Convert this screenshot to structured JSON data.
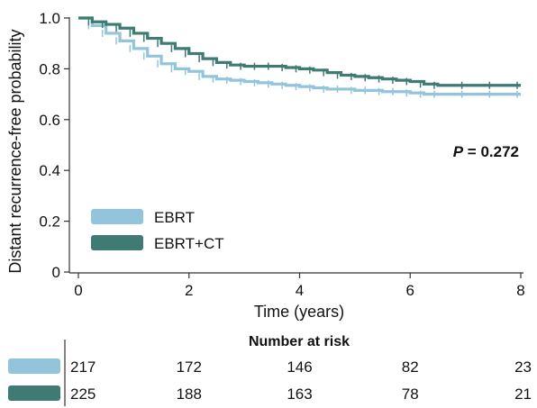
{
  "chart_data": {
    "type": "line",
    "title": "",
    "xlabel": "Time (years)",
    "ylabel": "Distant recurrence-free probability",
    "xlim": [
      0,
      8
    ],
    "ylim": [
      0,
      1.0
    ],
    "x_ticks": [
      "0",
      "2",
      "4",
      "6",
      "8"
    ],
    "y_ticks": [
      "0",
      "0.2",
      "0.4",
      "0.6",
      "0.8",
      "1.0"
    ],
    "grid": false,
    "legend_position": "bottom-left",
    "p_value": {
      "prefix": "P",
      "text": " = 0.272"
    },
    "series": [
      {
        "name": "EBRT",
        "color": "#92c5dc",
        "x": [
          0,
          0.25,
          0.5,
          0.75,
          1.0,
          1.25,
          1.5,
          1.75,
          2.0,
          2.25,
          2.5,
          2.75,
          3.0,
          3.25,
          3.5,
          3.75,
          4.0,
          4.25,
          4.5,
          4.75,
          5.0,
          5.25,
          5.5,
          5.75,
          6.0,
          6.25,
          6.5,
          7.0,
          7.5,
          8.0
        ],
        "y": [
          1.0,
          0.97,
          0.94,
          0.91,
          0.88,
          0.85,
          0.82,
          0.8,
          0.79,
          0.77,
          0.76,
          0.755,
          0.75,
          0.745,
          0.74,
          0.735,
          0.73,
          0.725,
          0.72,
          0.72,
          0.715,
          0.715,
          0.71,
          0.71,
          0.705,
          0.7,
          0.7,
          0.7,
          0.7,
          0.7
        ]
      },
      {
        "name": "EBRT+CT",
        "color": "#3f7a73",
        "x": [
          0,
          0.25,
          0.5,
          0.75,
          1.0,
          1.25,
          1.5,
          1.75,
          2.0,
          2.25,
          2.5,
          2.75,
          3.0,
          3.25,
          3.5,
          3.75,
          4.0,
          4.25,
          4.5,
          4.75,
          5.0,
          5.25,
          5.5,
          5.75,
          6.0,
          6.25,
          6.5,
          7.0,
          7.5,
          8.0
        ],
        "y": [
          1.0,
          0.985,
          0.975,
          0.96,
          0.94,
          0.92,
          0.9,
          0.88,
          0.86,
          0.84,
          0.825,
          0.815,
          0.81,
          0.81,
          0.81,
          0.805,
          0.8,
          0.795,
          0.785,
          0.775,
          0.77,
          0.765,
          0.76,
          0.755,
          0.75,
          0.74,
          0.735,
          0.735,
          0.735,
          0.735
        ]
      }
    ]
  },
  "number_at_risk": {
    "title": "Number at risk",
    "rows": [
      {
        "series": "EBRT",
        "color": "#92c5dc",
        "values": [
          "217",
          "172",
          "146",
          "82",
          "23"
        ]
      },
      {
        "series": "EBRT+CT",
        "color": "#3f7a73",
        "values": [
          "225",
          "188",
          "163",
          "78",
          "21"
        ]
      }
    ]
  }
}
